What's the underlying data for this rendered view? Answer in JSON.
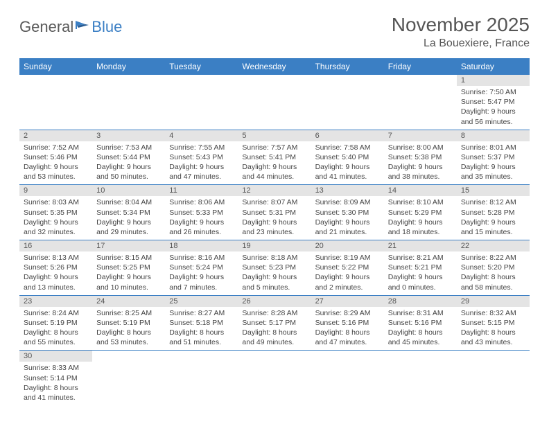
{
  "logo": {
    "text1": "General",
    "text2": "Blue"
  },
  "title": "November 2025",
  "location": "La Bouexiere, France",
  "colors": {
    "header_bg": "#3b7fc4",
    "header_text": "#ffffff",
    "daynum_bg": "#e4e4e4",
    "border": "#3b7fc4",
    "text": "#444444"
  },
  "weekdays": [
    "Sunday",
    "Monday",
    "Tuesday",
    "Wednesday",
    "Thursday",
    "Friday",
    "Saturday"
  ],
  "weeks": [
    [
      null,
      null,
      null,
      null,
      null,
      null,
      {
        "n": "1",
        "sr": "Sunrise: 7:50 AM",
        "ss": "Sunset: 5:47 PM",
        "d1": "Daylight: 9 hours",
        "d2": "and 56 minutes."
      }
    ],
    [
      {
        "n": "2",
        "sr": "Sunrise: 7:52 AM",
        "ss": "Sunset: 5:46 PM",
        "d1": "Daylight: 9 hours",
        "d2": "and 53 minutes."
      },
      {
        "n": "3",
        "sr": "Sunrise: 7:53 AM",
        "ss": "Sunset: 5:44 PM",
        "d1": "Daylight: 9 hours",
        "d2": "and 50 minutes."
      },
      {
        "n": "4",
        "sr": "Sunrise: 7:55 AM",
        "ss": "Sunset: 5:43 PM",
        "d1": "Daylight: 9 hours",
        "d2": "and 47 minutes."
      },
      {
        "n": "5",
        "sr": "Sunrise: 7:57 AM",
        "ss": "Sunset: 5:41 PM",
        "d1": "Daylight: 9 hours",
        "d2": "and 44 minutes."
      },
      {
        "n": "6",
        "sr": "Sunrise: 7:58 AM",
        "ss": "Sunset: 5:40 PM",
        "d1": "Daylight: 9 hours",
        "d2": "and 41 minutes."
      },
      {
        "n": "7",
        "sr": "Sunrise: 8:00 AM",
        "ss": "Sunset: 5:38 PM",
        "d1": "Daylight: 9 hours",
        "d2": "and 38 minutes."
      },
      {
        "n": "8",
        "sr": "Sunrise: 8:01 AM",
        "ss": "Sunset: 5:37 PM",
        "d1": "Daylight: 9 hours",
        "d2": "and 35 minutes."
      }
    ],
    [
      {
        "n": "9",
        "sr": "Sunrise: 8:03 AM",
        "ss": "Sunset: 5:35 PM",
        "d1": "Daylight: 9 hours",
        "d2": "and 32 minutes."
      },
      {
        "n": "10",
        "sr": "Sunrise: 8:04 AM",
        "ss": "Sunset: 5:34 PM",
        "d1": "Daylight: 9 hours",
        "d2": "and 29 minutes."
      },
      {
        "n": "11",
        "sr": "Sunrise: 8:06 AM",
        "ss": "Sunset: 5:33 PM",
        "d1": "Daylight: 9 hours",
        "d2": "and 26 minutes."
      },
      {
        "n": "12",
        "sr": "Sunrise: 8:07 AM",
        "ss": "Sunset: 5:31 PM",
        "d1": "Daylight: 9 hours",
        "d2": "and 23 minutes."
      },
      {
        "n": "13",
        "sr": "Sunrise: 8:09 AM",
        "ss": "Sunset: 5:30 PM",
        "d1": "Daylight: 9 hours",
        "d2": "and 21 minutes."
      },
      {
        "n": "14",
        "sr": "Sunrise: 8:10 AM",
        "ss": "Sunset: 5:29 PM",
        "d1": "Daylight: 9 hours",
        "d2": "and 18 minutes."
      },
      {
        "n": "15",
        "sr": "Sunrise: 8:12 AM",
        "ss": "Sunset: 5:28 PM",
        "d1": "Daylight: 9 hours",
        "d2": "and 15 minutes."
      }
    ],
    [
      {
        "n": "16",
        "sr": "Sunrise: 8:13 AM",
        "ss": "Sunset: 5:26 PM",
        "d1": "Daylight: 9 hours",
        "d2": "and 13 minutes."
      },
      {
        "n": "17",
        "sr": "Sunrise: 8:15 AM",
        "ss": "Sunset: 5:25 PM",
        "d1": "Daylight: 9 hours",
        "d2": "and 10 minutes."
      },
      {
        "n": "18",
        "sr": "Sunrise: 8:16 AM",
        "ss": "Sunset: 5:24 PM",
        "d1": "Daylight: 9 hours",
        "d2": "and 7 minutes."
      },
      {
        "n": "19",
        "sr": "Sunrise: 8:18 AM",
        "ss": "Sunset: 5:23 PM",
        "d1": "Daylight: 9 hours",
        "d2": "and 5 minutes."
      },
      {
        "n": "20",
        "sr": "Sunrise: 8:19 AM",
        "ss": "Sunset: 5:22 PM",
        "d1": "Daylight: 9 hours",
        "d2": "and 2 minutes."
      },
      {
        "n": "21",
        "sr": "Sunrise: 8:21 AM",
        "ss": "Sunset: 5:21 PM",
        "d1": "Daylight: 9 hours",
        "d2": "and 0 minutes."
      },
      {
        "n": "22",
        "sr": "Sunrise: 8:22 AM",
        "ss": "Sunset: 5:20 PM",
        "d1": "Daylight: 8 hours",
        "d2": "and 58 minutes."
      }
    ],
    [
      {
        "n": "23",
        "sr": "Sunrise: 8:24 AM",
        "ss": "Sunset: 5:19 PM",
        "d1": "Daylight: 8 hours",
        "d2": "and 55 minutes."
      },
      {
        "n": "24",
        "sr": "Sunrise: 8:25 AM",
        "ss": "Sunset: 5:19 PM",
        "d1": "Daylight: 8 hours",
        "d2": "and 53 minutes."
      },
      {
        "n": "25",
        "sr": "Sunrise: 8:27 AM",
        "ss": "Sunset: 5:18 PM",
        "d1": "Daylight: 8 hours",
        "d2": "and 51 minutes."
      },
      {
        "n": "26",
        "sr": "Sunrise: 8:28 AM",
        "ss": "Sunset: 5:17 PM",
        "d1": "Daylight: 8 hours",
        "d2": "and 49 minutes."
      },
      {
        "n": "27",
        "sr": "Sunrise: 8:29 AM",
        "ss": "Sunset: 5:16 PM",
        "d1": "Daylight: 8 hours",
        "d2": "and 47 minutes."
      },
      {
        "n": "28",
        "sr": "Sunrise: 8:31 AM",
        "ss": "Sunset: 5:16 PM",
        "d1": "Daylight: 8 hours",
        "d2": "and 45 minutes."
      },
      {
        "n": "29",
        "sr": "Sunrise: 8:32 AM",
        "ss": "Sunset: 5:15 PM",
        "d1": "Daylight: 8 hours",
        "d2": "and 43 minutes."
      }
    ],
    [
      {
        "n": "30",
        "sr": "Sunrise: 8:33 AM",
        "ss": "Sunset: 5:14 PM",
        "d1": "Daylight: 8 hours",
        "d2": "and 41 minutes."
      },
      null,
      null,
      null,
      null,
      null,
      null
    ]
  ]
}
